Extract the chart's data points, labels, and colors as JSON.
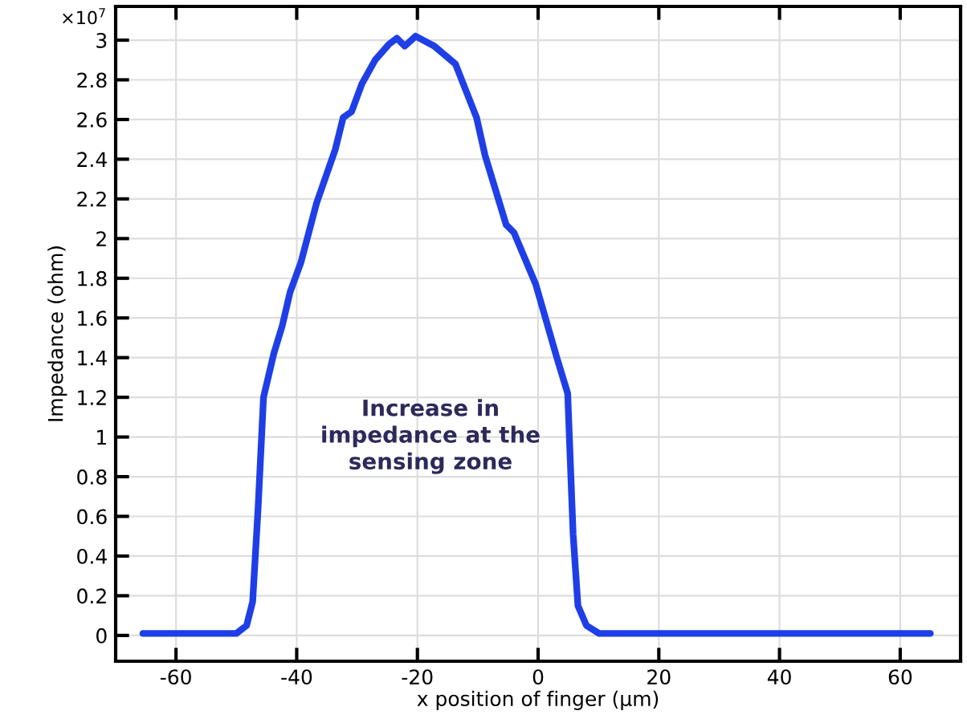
{
  "chart_data": {
    "type": "line",
    "xlabel": "x position of finger (µm)",
    "ylabel": "Impedance (ohm)",
    "annotations": [
      "×10$^{7}$",
      "Increase in\nimpedance at the\nsensing zone"
    ],
    "series": [
      {
        "color": "#1f3fe6",
        "x": [
          -65.5,
          -55,
          -50,
          -48.3,
          -47.3,
          -46.4,
          -45.5,
          -43.8,
          -42.4,
          -41.1,
          -39.3,
          -36.7,
          -33.6,
          -32.3,
          -30.9,
          -29.2,
          -27.0,
          -24.7,
          -23.4,
          -22.1,
          -20.3,
          -17.2,
          -13.7,
          -10.2,
          -8.8,
          -5.3,
          -4.0,
          -0.4,
          3.1,
          4.9,
          5.8,
          6.6,
          8.0,
          10.1,
          30,
          50,
          65
        ],
        "values": [
          0.01,
          0.01,
          0.01,
          0.05,
          0.17,
          0.64,
          1.2,
          1.42,
          1.56,
          1.73,
          1.88,
          2.18,
          2.45,
          2.61,
          2.64,
          2.78,
          2.9,
          2.98,
          3.01,
          2.97,
          3.02,
          2.97,
          2.88,
          2.61,
          2.42,
          2.07,
          2.03,
          1.77,
          1.4,
          1.22,
          0.51,
          0.15,
          0.05,
          0.01,
          0.01,
          0.01,
          0.01
        ]
      }
    ],
    "xlim": [
      -70,
      70
    ],
    "ylim": [
      -0.13,
      3.17
    ],
    "xticks": [
      -60,
      -40,
      -20,
      0,
      20,
      40,
      60
    ],
    "yticks": [
      0,
      0.2,
      0.4,
      0.6,
      0.8,
      1,
      1.2,
      1.4,
      1.6,
      1.8,
      2,
      2.2,
      2.4,
      2.6,
      2.8,
      3
    ],
    "grid": true,
    "marker": "none",
    "line_style": "solid"
  }
}
